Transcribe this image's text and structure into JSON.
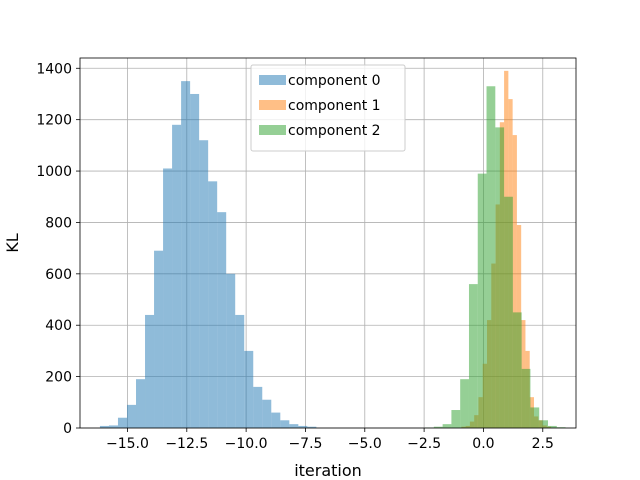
{
  "chart_data": {
    "type": "bar",
    "subtype": "overlapping-histogram",
    "title": "",
    "xlabel": "iteration",
    "ylabel": "KL",
    "xlim": [
      -17.0,
      3.9
    ],
    "ylim": [
      0,
      1440
    ],
    "xticks": [
      -15.0,
      -12.5,
      -10.0,
      -7.5,
      -5.0,
      -2.5,
      0.0,
      2.5
    ],
    "xtick_labels": [
      "−15.0",
      "−12.5",
      "−10.0",
      "−7.5",
      "−5.0",
      "−2.5",
      "0.0",
      "2.5"
    ],
    "yticks": [
      0,
      200,
      400,
      600,
      800,
      1000,
      1200,
      1400
    ],
    "ytick_labels": [
      "0",
      "200",
      "400",
      "600",
      "800",
      "1000",
      "1200",
      "1400"
    ],
    "grid": true,
    "legend_position": "upper-center",
    "bar_alpha": 0.5,
    "series": [
      {
        "name": "component 0",
        "color": "#1f77b4",
        "bins": [
          [
            -16.16,
            -15.78,
            8
          ],
          [
            -15.78,
            -15.4,
            10
          ],
          [
            -15.4,
            -15.02,
            40
          ],
          [
            -15.02,
            -14.64,
            90
          ],
          [
            -14.64,
            -14.26,
            190
          ],
          [
            -14.26,
            -13.88,
            440
          ],
          [
            -13.88,
            -13.5,
            690
          ],
          [
            -13.5,
            -13.12,
            1010
          ],
          [
            -13.12,
            -12.74,
            1180
          ],
          [
            -12.74,
            -12.36,
            1350
          ],
          [
            -12.36,
            -11.98,
            1300
          ],
          [
            -11.98,
            -11.6,
            1120
          ],
          [
            -11.6,
            -11.22,
            960
          ],
          [
            -11.22,
            -10.84,
            840
          ],
          [
            -10.84,
            -10.46,
            600
          ],
          [
            -10.46,
            -10.08,
            440
          ],
          [
            -10.08,
            -9.7,
            300
          ],
          [
            -9.7,
            -9.32,
            160
          ],
          [
            -9.32,
            -8.94,
            110
          ],
          [
            -8.94,
            -8.56,
            60
          ],
          [
            -8.56,
            -8.18,
            30
          ],
          [
            -8.18,
            -7.8,
            15
          ],
          [
            -7.8,
            -7.42,
            8
          ],
          [
            -7.42,
            -7.04,
            5
          ]
        ]
      },
      {
        "name": "component 1",
        "color": "#ff7f0e",
        "bins": [
          [
            -0.93,
            -0.75,
            5
          ],
          [
            -0.75,
            -0.57,
            8
          ],
          [
            -0.57,
            -0.39,
            25
          ],
          [
            -0.39,
            -0.21,
            50
          ],
          [
            -0.21,
            -0.03,
            120
          ],
          [
            -0.03,
            0.15,
            250
          ],
          [
            0.15,
            0.33,
            420
          ],
          [
            0.33,
            0.51,
            640
          ],
          [
            0.51,
            0.69,
            870
          ],
          [
            0.69,
            0.87,
            1190
          ],
          [
            0.87,
            1.05,
            1390
          ],
          [
            1.05,
            1.23,
            1280
          ],
          [
            1.23,
            1.41,
            1140
          ],
          [
            1.41,
            1.59,
            790
          ],
          [
            1.59,
            1.77,
            420
          ],
          [
            1.77,
            1.95,
            300
          ],
          [
            1.95,
            2.13,
            120
          ],
          [
            2.13,
            2.31,
            45
          ],
          [
            2.31,
            2.49,
            30
          ],
          [
            2.49,
            2.67,
            10
          ],
          [
            2.67,
            2.85,
            5
          ]
        ]
      },
      {
        "name": "component 2",
        "color": "#2ca02c",
        "bins": [
          [
            -2.46,
            -2.09,
            2
          ],
          [
            -2.09,
            -1.72,
            5
          ],
          [
            -1.72,
            -1.35,
            15
          ],
          [
            -1.35,
            -0.98,
            70
          ],
          [
            -0.98,
            -0.61,
            190
          ],
          [
            -0.61,
            -0.24,
            560
          ],
          [
            -0.24,
            0.13,
            990
          ],
          [
            0.13,
            0.5,
            1330
          ],
          [
            0.5,
            0.87,
            1170
          ],
          [
            0.87,
            1.24,
            900
          ],
          [
            1.24,
            1.61,
            450
          ],
          [
            1.61,
            1.98,
            230
          ],
          [
            1.98,
            2.35,
            80
          ],
          [
            2.35,
            2.72,
            30
          ],
          [
            2.72,
            3.09,
            8
          ],
          [
            3.09,
            3.46,
            3
          ]
        ]
      }
    ]
  }
}
